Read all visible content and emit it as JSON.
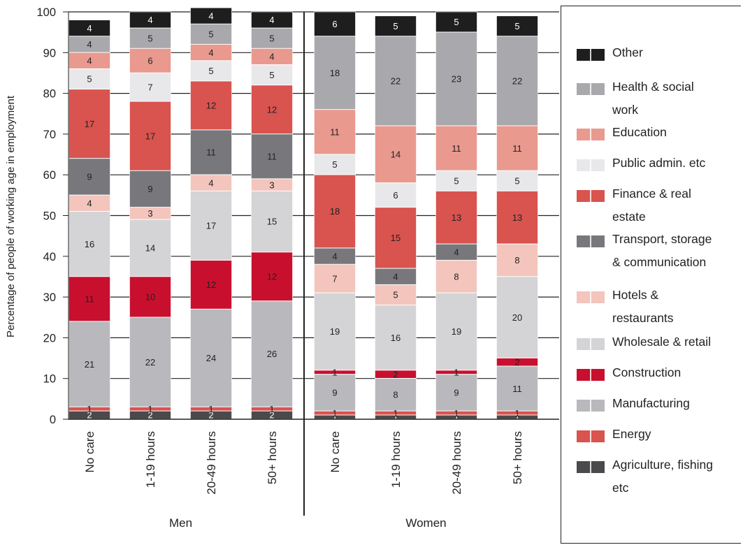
{
  "chart_data": {
    "type": "bar",
    "stacked": true,
    "ylabel": "Percentage of people of working age in employment",
    "ylim": [
      0,
      100
    ],
    "yticks": [
      0,
      10,
      20,
      30,
      40,
      50,
      60,
      70,
      80,
      90,
      100
    ],
    "categories": [
      "No care",
      "1-19 hours",
      "20-49 hours",
      "50+ hours",
      "No care",
      "1-19 hours",
      "20-49 hours",
      "50+ hours"
    ],
    "groups": [
      {
        "label": "Men",
        "indices": [
          0,
          1,
          2,
          3
        ]
      },
      {
        "label": "Women",
        "indices": [
          4,
          5,
          6,
          7
        ]
      }
    ],
    "series": [
      {
        "name": "Agriculture, fishing etc",
        "color": "#4a4a4c",
        "values": [
          2,
          2,
          2,
          2,
          1,
          1,
          1,
          1
        ]
      },
      {
        "name": "Energy",
        "color": "#d9534f",
        "values": [
          1,
          1,
          1,
          1,
          1,
          1,
          1,
          1
        ]
      },
      {
        "name": "Manufacturing",
        "color": "#b9b9bd",
        "values": [
          21,
          22,
          24,
          26,
          9,
          8,
          9,
          11
        ]
      },
      {
        "name": "Construction",
        "color": "#c8102e",
        "values": [
          11,
          10,
          12,
          12,
          1,
          2,
          1,
          2
        ]
      },
      {
        "name": "Wholesale & retail",
        "color": "#d4d4d6",
        "values": [
          16,
          14,
          17,
          15,
          19,
          16,
          19,
          20
        ]
      },
      {
        "name": "Hotels & restaurants",
        "color": "#f3c5bd",
        "values": [
          4,
          3,
          4,
          3,
          7,
          5,
          8,
          8
        ]
      },
      {
        "name": "Transport, storage & communication",
        "color": "#78787c",
        "values": [
          9,
          9,
          11,
          11,
          4,
          4,
          4,
          0
        ]
      },
      {
        "name": "Finance & real estate",
        "color": "#d9534f",
        "values": [
          17,
          17,
          12,
          12,
          18,
          15,
          13,
          13
        ]
      },
      {
        "name": "Public admin. etc",
        "color": "#e8e8ea",
        "values": [
          5,
          7,
          5,
          5,
          5,
          6,
          5,
          5
        ]
      },
      {
        "name": "Education",
        "color": "#e9998e",
        "values": [
          4,
          6,
          4,
          4,
          11,
          14,
          11,
          11
        ]
      },
      {
        "name": "Health & social work",
        "color": "#a9a9ad",
        "values": [
          4,
          5,
          5,
          5,
          18,
          22,
          23,
          22
        ]
      },
      {
        "name": "Other",
        "color": "#1e1e1e",
        "values": [
          4,
          4,
          4,
          4,
          6,
          5,
          5,
          5
        ]
      }
    ],
    "legend_order": [
      "Other",
      "Health & social work",
      "Education",
      "Public admin. etc",
      "Finance & real estate",
      "Transport, storage & communication",
      "Hotels & restaurants",
      "Wholesale & retail",
      "Construction",
      "Manufacturing",
      "Energy",
      "Agriculture, fishing etc"
    ],
    "legend_labels": {
      "Other": [
        "Other"
      ],
      "Health & social work": [
        "Health & social",
        "work"
      ],
      "Education": [
        "Education"
      ],
      "Public admin. etc": [
        "Public admin. etc"
      ],
      "Finance & real estate": [
        "Finance & real",
        "estate"
      ],
      "Transport, storage & communication": [
        "Transport, storage",
        "& communication"
      ],
      "Hotels & restaurants": [
        "Hotels &",
        "restaurants"
      ],
      "Wholesale & retail": [
        "Wholesale & retail"
      ],
      "Construction": [
        "Construction"
      ],
      "Manufacturing": [
        "Manufacturing"
      ],
      "Energy": [
        "Energy"
      ],
      "Agriculture, fishing etc": [
        "Agriculture, fishing",
        "etc"
      ]
    },
    "grid": true,
    "legend_position": "right"
  }
}
